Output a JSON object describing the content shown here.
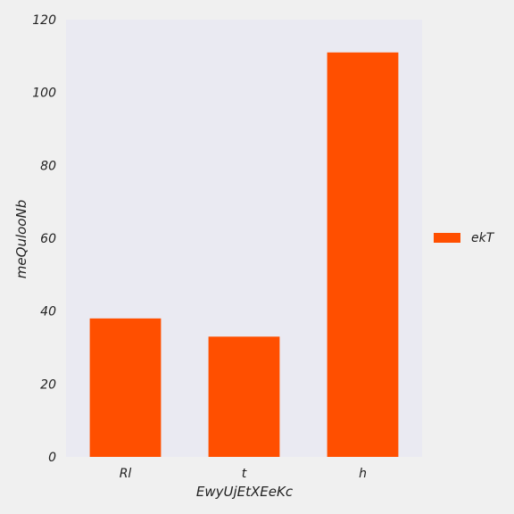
{
  "chart_data": {
    "type": "bar",
    "title": "",
    "xlabel": "EwyUjEtXEeKc",
    "ylabel": "meQulooNb",
    "categories": [
      "Rl",
      "t",
      "h"
    ],
    "series": [
      {
        "name": "ekT",
        "values": [
          38,
          33,
          111
        ],
        "color": "#ff4f00"
      }
    ],
    "ylim": [
      0,
      120
    ],
    "yticks": [
      0,
      20,
      40,
      60,
      80,
      100,
      120
    ],
    "grid": false,
    "legend": "right",
    "colors": {
      "plot_background": "#eaeaf2",
      "figure_background": "#f0f0f0"
    }
  }
}
